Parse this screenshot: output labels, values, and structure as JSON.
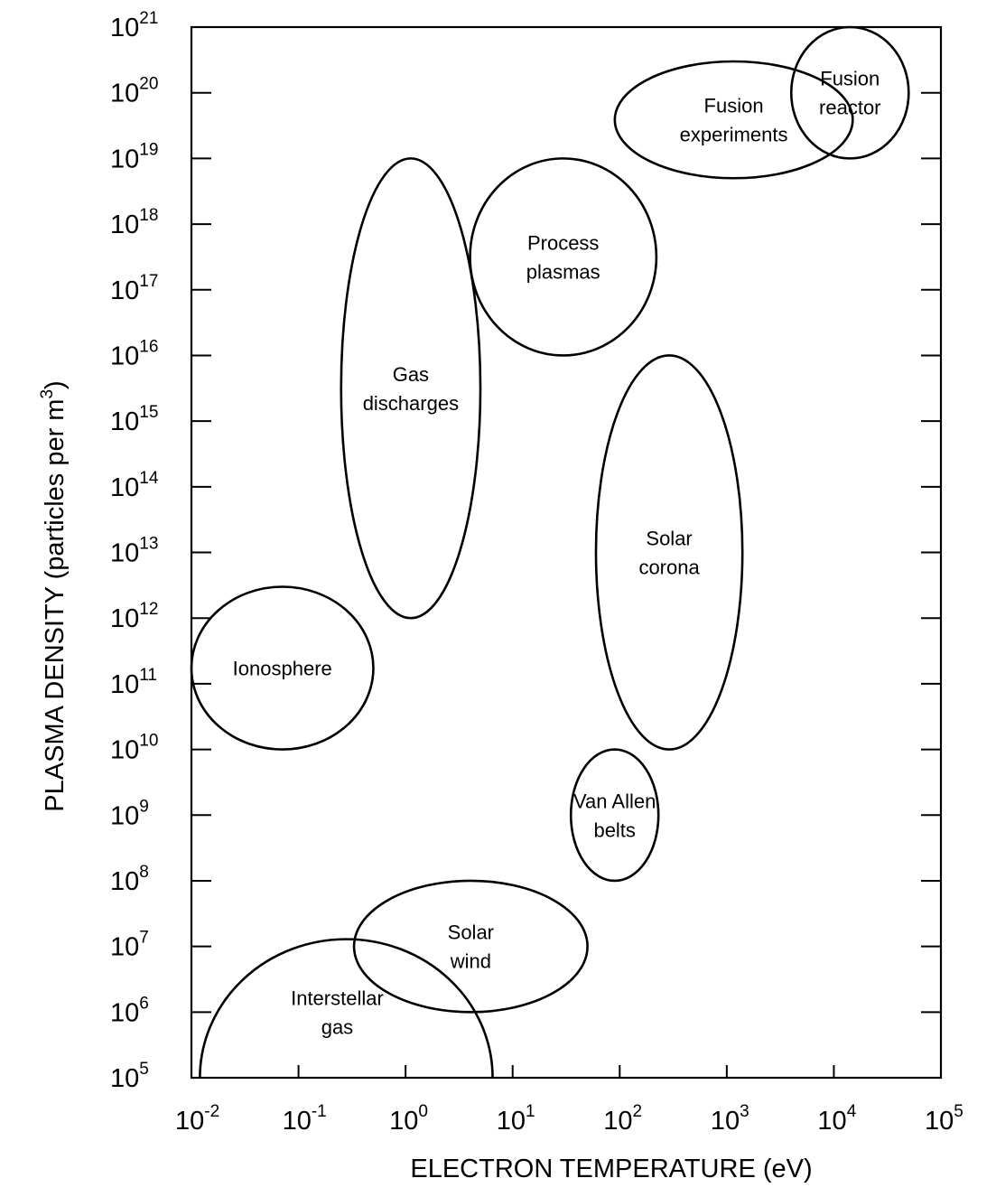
{
  "chart_data": {
    "type": "scatter",
    "title": "",
    "xlabel": "ELECTRON TEMPERATURE (eV)",
    "ylabel": "PLASMA DENSITY (particles per m³)",
    "ylabel_parts": {
      "main": "PLASMA DENSITY (particles per m",
      "sup": "3",
      "end": ")"
    },
    "x_scale": "log",
    "y_scale": "log",
    "xlim": [
      0.01,
      100000
    ],
    "ylim": [
      100000,
      1e+21
    ],
    "grid": false,
    "x_ticks": [
      {
        "value": 0.01,
        "base": "10",
        "exp": "-2"
      },
      {
        "value": 0.1,
        "base": "10",
        "exp": "-1"
      },
      {
        "value": 1,
        "base": "10",
        "exp": "0"
      },
      {
        "value": 10,
        "base": "10",
        "exp": "1"
      },
      {
        "value": 100,
        "base": "10",
        "exp": "2"
      },
      {
        "value": 1000,
        "base": "10",
        "exp": "3"
      },
      {
        "value": 10000,
        "base": "10",
        "exp": "4"
      },
      {
        "value": 100000,
        "base": "10",
        "exp": "5"
      }
    ],
    "y_ticks": [
      {
        "value": 100000.0,
        "base": "10",
        "exp": "5"
      },
      {
        "value": 1000000.0,
        "base": "10",
        "exp": "6"
      },
      {
        "value": 10000000.0,
        "base": "10",
        "exp": "7"
      },
      {
        "value": 100000000.0,
        "base": "10",
        "exp": "8"
      },
      {
        "value": 1000000000.0,
        "base": "10",
        "exp": "9"
      },
      {
        "value": 10000000000.0,
        "base": "10",
        "exp": "10"
      },
      {
        "value": 100000000000.0,
        "base": "10",
        "exp": "11"
      },
      {
        "value": 1000000000000.0,
        "base": "10",
        "exp": "12"
      },
      {
        "value": 10000000000000.0,
        "base": "10",
        "exp": "13"
      },
      {
        "value": 100000000000000.0,
        "base": "10",
        "exp": "14"
      },
      {
        "value": 1000000000000000.0,
        "base": "10",
        "exp": "15"
      },
      {
        "value": 1e+16,
        "base": "10",
        "exp": "16"
      },
      {
        "value": 1e+17,
        "base": "10",
        "exp": "17"
      },
      {
        "value": 1e+18,
        "base": "10",
        "exp": "18"
      },
      {
        "value": 1e+19,
        "base": "10",
        "exp": "19"
      },
      {
        "value": 1e+20,
        "base": "10",
        "exp": "20"
      },
      {
        "value": 1e+21,
        "base": "10",
        "exp": "21"
      }
    ],
    "regions": [
      {
        "name": "interstellar-gas",
        "label": [
          "Interstellar",
          "gas"
        ],
        "shape": "arch",
        "T_range": [
          0.012,
          6.5
        ],
        "n_peak": 10000000.0,
        "n_base": 100000.0
      },
      {
        "name": "solar-wind",
        "label": [
          "Solar",
          "wind"
        ],
        "shape": "ellipse",
        "T_range": [
          0.33,
          50
        ],
        "n_range": [
          1000000.0,
          100000000.0
        ]
      },
      {
        "name": "ionosphere",
        "label": [
          "Ionosphere"
        ],
        "shape": "ellipse",
        "T_range": [
          0.01,
          0.5
        ],
        "n_range": [
          10000000000.0,
          3000000000000.0
        ]
      },
      {
        "name": "gas-discharges",
        "label": [
          "Gas",
          "discharges"
        ],
        "shape": "ellipse",
        "T_range": [
          0.25,
          5
        ],
        "n_range": [
          1000000000000.0,
          1e+19
        ]
      },
      {
        "name": "process-plasmas",
        "label": [
          "Process",
          "plasmas"
        ],
        "shape": "ellipse",
        "T_range": [
          4,
          220
        ],
        "n_range": [
          1e+16,
          1e+19
        ]
      },
      {
        "name": "solar-corona",
        "label": [
          "Solar",
          "corona"
        ],
        "shape": "ellipse",
        "T_range": [
          60,
          1400
        ],
        "n_range": [
          10000000000.0,
          1e+16
        ]
      },
      {
        "name": "van-allen-belts",
        "label": [
          "Van Allen",
          "belts"
        ],
        "shape": "ellipse",
        "T_range": [
          35,
          230
        ],
        "n_range": [
          100000000.0,
          10000000000.0
        ]
      },
      {
        "name": "fusion-experiments",
        "label": [
          "Fusion",
          "experiments"
        ],
        "shape": "ellipse",
        "T_range": [
          90,
          15000
        ],
        "n_range": [
          5e+18,
          3e+20
        ]
      },
      {
        "name": "fusion-reactor",
        "label": [
          "Fusion",
          "reactor"
        ],
        "shape": "ellipse",
        "T_range": [
          4000,
          50000
        ],
        "n_range": [
          1e+19,
          1e+21
        ]
      }
    ]
  }
}
